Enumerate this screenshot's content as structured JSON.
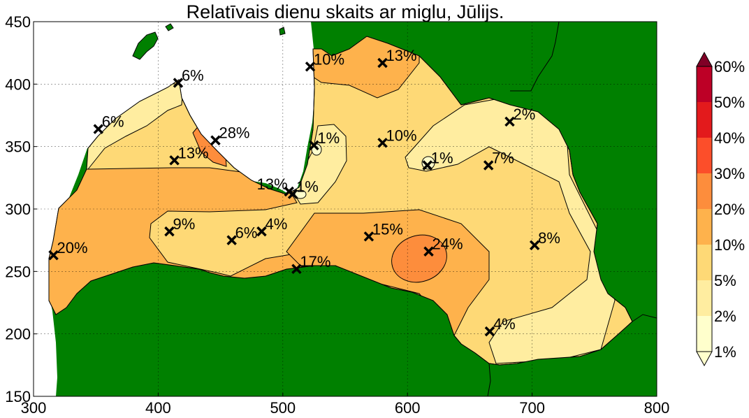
{
  "title": "Relatīvais dienu skaits ar miglu, Jūlijs.",
  "axes": {
    "xlim": [
      300,
      800
    ],
    "ylim": [
      150,
      450
    ],
    "xticks": [
      "300",
      "400",
      "500",
      "600",
      "700",
      "800"
    ],
    "yticks": [
      "150",
      "200",
      "250",
      "300",
      "350",
      "400",
      "450"
    ],
    "grid": true
  },
  "colors": {
    "sea": "#ffffff",
    "land_outside": "#008000",
    "level_colors": [
      "#ffffcc",
      "#ffeda0",
      "#fed976",
      "#feb24c",
      "#fd8d3c",
      "#fc4e2a",
      "#e31a1c",
      "#bd0026",
      "#800026"
    ]
  },
  "colorbar": {
    "labels": [
      "1%",
      "2%",
      "5%",
      "10%",
      "20%",
      "30%",
      "40%",
      "50%",
      "60%"
    ],
    "extend": "both"
  },
  "stations": [
    {
      "x": 316,
      "y": 263,
      "label": "20%"
    },
    {
      "x": 352,
      "y": 364,
      "label": "6%"
    },
    {
      "x": 416,
      "y": 401,
      "label": "6%"
    },
    {
      "x": 413,
      "y": 339,
      "label": "13%"
    },
    {
      "x": 446,
      "y": 355,
      "label": "28%"
    },
    {
      "x": 409,
      "y": 282,
      "label": "9%"
    },
    {
      "x": 459,
      "y": 275,
      "label": "6%"
    },
    {
      "x": 483,
      "y": 282,
      "label": "4%"
    },
    {
      "x": 505,
      "y": 314,
      "label": "13%",
      "side": "left"
    },
    {
      "x": 508,
      "y": 312,
      "label": "1%"
    },
    {
      "x": 511,
      "y": 252,
      "label": "17%"
    },
    {
      "x": 522,
      "y": 414,
      "label": "10%"
    },
    {
      "x": 525,
      "y": 351,
      "label": "1%"
    },
    {
      "x": 569,
      "y": 278,
      "label": "15%"
    },
    {
      "x": 580,
      "y": 353,
      "label": "10%"
    },
    {
      "x": 580,
      "y": 417,
      "label": "13%"
    },
    {
      "x": 616,
      "y": 335,
      "label": "1%"
    },
    {
      "x": 617,
      "y": 266,
      "label": "24%"
    },
    {
      "x": 665,
      "y": 335,
      "label": "7%"
    },
    {
      "x": 666,
      "y": 202,
      "label": "4%"
    },
    {
      "x": 682,
      "y": 370,
      "label": "2%"
    },
    {
      "x": 702,
      "y": 271,
      "label": "8%"
    }
  ]
}
